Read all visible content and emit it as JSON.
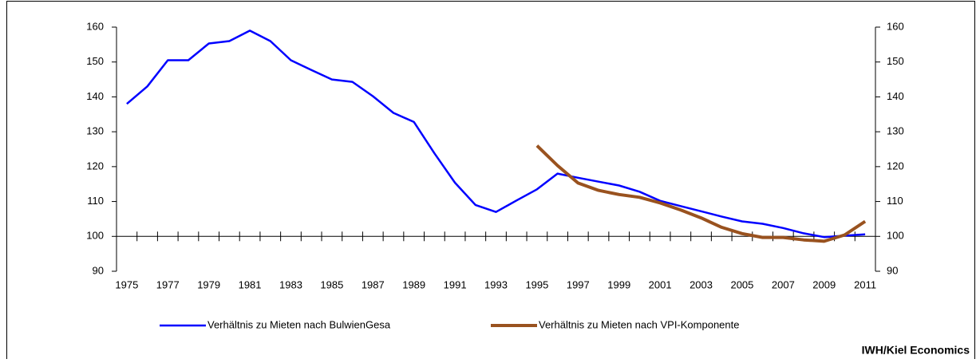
{
  "chart_data": {
    "type": "line",
    "categories": [
      "1975",
      null,
      "1977",
      null,
      "1979",
      null,
      "1981",
      null,
      "1983",
      null,
      "1985",
      null,
      "1987",
      null,
      "1989",
      null,
      "1991",
      null,
      "1993",
      null,
      "1995",
      null,
      "1997",
      null,
      "1999",
      null,
      "2001",
      null,
      "2003",
      null,
      "2005",
      null,
      "2007",
      null,
      "2009",
      null,
      "2011"
    ],
    "series": [
      {
        "name": "Verhältnis zu Mieten nach BulwienGesa",
        "color": "#0000ff",
        "values": [
          138,
          143,
          150.5,
          150.5,
          155.3,
          156,
          159,
          156,
          150.5,
          147.7,
          145,
          144.3,
          140.2,
          135.4,
          132.8,
          123.8,
          115.4,
          109,
          107,
          110.3,
          113.5,
          118,
          116.8,
          115.7,
          114.6,
          112.8,
          110.2,
          108.7,
          107.2,
          105.7,
          104.3,
          103.6,
          102.4,
          100.9,
          99.8,
          100.2,
          100.6
        ]
      },
      {
        "name": "Verhältnis zu Mieten nach VPI-Komponente",
        "color": "#99521f",
        "values": [
          null,
          null,
          null,
          null,
          null,
          null,
          null,
          null,
          null,
          null,
          null,
          null,
          null,
          null,
          null,
          null,
          null,
          null,
          null,
          null,
          126,
          120.3,
          115.3,
          113.2,
          112,
          111.2,
          109.6,
          107.6,
          105.3,
          102.6,
          100.8,
          99.7,
          99.7,
          99,
          98.6,
          100.4,
          104.3
        ]
      }
    ],
    "ylim": [
      90,
      160
    ],
    "yticks": [
      90,
      100,
      110,
      120,
      130,
      140,
      150,
      160
    ],
    "y2lim": [
      90,
      160
    ],
    "y2ticks": [
      90,
      100,
      110,
      120,
      130,
      140,
      150,
      160
    ],
    "x_axis_crossing": 100,
    "source": "IWH/Kiel Economics"
  }
}
